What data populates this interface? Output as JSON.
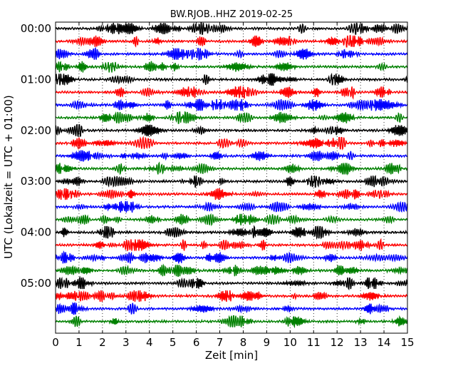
{
  "chart_data": {
    "type": "line",
    "title": "BW.RJOB..HHZ 2019-02-25",
    "xlabel": "Zeit  [min]",
    "ylabel": "UTC (Lokalzeit = UTC + 01:00)",
    "xlim": [
      0,
      15
    ],
    "x_ticks": [
      "0",
      "1",
      "2",
      "3",
      "4",
      "5",
      "6",
      "7",
      "8",
      "9",
      "10",
      "11",
      "12",
      "13",
      "14",
      "15"
    ],
    "y_ticks": [
      "00:00",
      "01:00",
      "02:00",
      "03:00",
      "04:00",
      "05:00"
    ],
    "trace_minutes": 15,
    "trace_start_times": [
      "00:00",
      "00:15",
      "00:30",
      "00:45",
      "01:00",
      "01:15",
      "01:30",
      "01:45",
      "02:00",
      "02:15",
      "02:30",
      "02:45",
      "03:00",
      "03:15",
      "03:30",
      "03:45",
      "04:00",
      "04:15",
      "04:30",
      "04:45",
      "05:00",
      "05:15",
      "05:30",
      "05:45"
    ],
    "color_cycle": [
      "#000000",
      "#ff0000",
      "#0000ff",
      "#008000"
    ],
    "grid": "x-dotted"
  }
}
